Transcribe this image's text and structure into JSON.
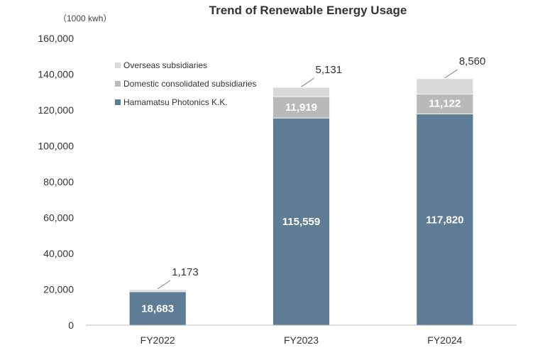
{
  "chart_data": {
    "type": "bar",
    "stacked": true,
    "title": "Trend of Renewable Energy Usage",
    "unit_label": "（1000 kwh）",
    "categories": [
      "FY2022",
      "FY2023",
      "FY2024"
    ],
    "ylim": [
      0,
      160000
    ],
    "yticks": [
      0,
      20000,
      40000,
      60000,
      80000,
      100000,
      120000,
      140000,
      160000
    ],
    "ytick_labels": [
      "0",
      "20,000",
      "40,000",
      "60,000",
      "80,000",
      "100,000",
      "120,000",
      "140,000",
      "160,000"
    ],
    "grid": false,
    "legend_position": "top-left",
    "series": [
      {
        "name": "Hamamatsu Photonics K.K.",
        "color": "#5e7d94",
        "values": [
          18683,
          115559,
          117820
        ],
        "labels": [
          "18,683",
          "115,559",
          "117,820"
        ]
      },
      {
        "name": "Domestic consolidated subsidiaries",
        "color": "#b9b9b9",
        "values": [
          0,
          11919,
          11122
        ],
        "labels": [
          "",
          "11,919",
          "11,122"
        ]
      },
      {
        "name": "Overseas subsidiaries",
        "color": "#d9d9d9",
        "values": [
          1173,
          5131,
          8560
        ],
        "labels": [
          "1,173",
          "5,131",
          "8,560"
        ]
      }
    ],
    "legend_order": [
      2,
      1,
      0
    ]
  }
}
